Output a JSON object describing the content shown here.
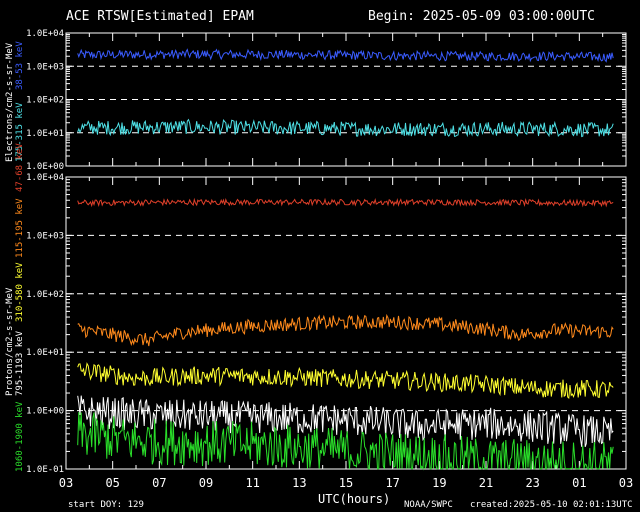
{
  "header": {
    "title": "ACE RTSW[Estimated] EPAM",
    "begin": "Begin: 2025-05-09 03:00:00UTC"
  },
  "footer": {
    "start_doy": "start DOY: 129",
    "xlabel": "UTC(hours)",
    "credit": "NOAA/SWPC",
    "created": "created:2025-05-10 02:01:13UTC"
  },
  "chart_data": [
    {
      "type": "line",
      "panel": "electrons",
      "ylabel": "Electrons/cm2-s-sr-MeV",
      "yscale": "log",
      "ylim": [
        0.1,
        10000
      ],
      "yticks": [
        "1.0E+00",
        "1.0E+01",
        "1.0E+02",
        "1.0E+03",
        "1.0E+04"
      ],
      "xlim": [
        3,
        27
      ],
      "xtick_labels": [
        "03",
        "05",
        "07",
        "09",
        "11",
        "13",
        "15",
        "17",
        "19",
        "21",
        "23",
        "01",
        "03"
      ],
      "dashed_gridlines": [
        1000,
        100,
        10
      ],
      "series": [
        {
          "name": "38-53 keV",
          "color": "#3a5cff",
          "base": 2200,
          "noise": 0.14,
          "anchors": [
            [
              3.5,
              2200
            ],
            [
              8,
              2300
            ],
            [
              12,
              2250
            ],
            [
              16,
              2100
            ],
            [
              20,
              2000
            ],
            [
              24,
              2000
            ],
            [
              26.5,
              1900
            ]
          ]
        },
        {
          "name": "175-315 keV",
          "color": "#4ee0e6",
          "base": 13,
          "noise": 0.22,
          "anchors": [
            [
              3.5,
              14
            ],
            [
              8,
              15
            ],
            [
              12,
              14
            ],
            [
              16,
              13
            ],
            [
              20,
              13
            ],
            [
              24,
              13
            ],
            [
              26.5,
              12
            ]
          ]
        }
      ]
    },
    {
      "type": "line",
      "panel": "protons",
      "ylabel": "Protons/cm2-s-sr-MeV",
      "yscale": "log",
      "ylim": [
        0.1,
        10000
      ],
      "yticks": [
        "1.0E-01",
        "1.0E+00",
        "1.0E+01",
        "1.0E+02",
        "1.0E+03",
        "1.0E+04"
      ],
      "xlim": [
        3,
        27
      ],
      "xtick_labels": [
        "03",
        "05",
        "07",
        "09",
        "11",
        "13",
        "15",
        "17",
        "19",
        "21",
        "23",
        "01",
        "03"
      ],
      "dashed_gridlines": [
        1000,
        100,
        10,
        1
      ],
      "series": [
        {
          "name": "47-68 keV",
          "color": "#e0402a",
          "noise": 0.05,
          "anchors": [
            [
              3.5,
              3600
            ],
            [
              8,
              3700
            ],
            [
              12,
              3700
            ],
            [
              16,
              3700
            ],
            [
              20,
              3700
            ],
            [
              24,
              3600
            ],
            [
              26.5,
              3600
            ]
          ]
        },
        {
          "name": "115-195 keV",
          "color": "#ff8a1c",
          "noise": 0.12,
          "anchors": [
            [
              3.5,
              25
            ],
            [
              5,
              20
            ],
            [
              6.5,
              16
            ],
            [
              8,
              22
            ],
            [
              11,
              28
            ],
            [
              14,
              32
            ],
            [
              17,
              33
            ],
            [
              19,
              30
            ],
            [
              21,
              25
            ],
            [
              22.5,
              20
            ],
            [
              24,
              24
            ],
            [
              26.5,
              22
            ]
          ]
        },
        {
          "name": "310-580 keV",
          "color": "#ffff30",
          "noise": 0.16,
          "anchors": [
            [
              3.5,
              5
            ],
            [
              6,
              3.6
            ],
            [
              9,
              4
            ],
            [
              12,
              3.8
            ],
            [
              15,
              3.5
            ],
            [
              18,
              3.2
            ],
            [
              21,
              2.8
            ],
            [
              23,
              2.4
            ],
            [
              26.5,
              2.3
            ]
          ]
        },
        {
          "name": "795-1193 keV",
          "color": "#ffffff",
          "noise": 0.28,
          "anchors": [
            [
              3.5,
              1.0
            ],
            [
              6,
              0.85
            ],
            [
              9,
              0.8
            ],
            [
              12,
              0.75
            ],
            [
              15,
              0.7
            ],
            [
              18,
              0.55
            ],
            [
              21,
              0.6
            ],
            [
              24,
              0.5
            ],
            [
              26.5,
              0.4
            ]
          ]
        },
        {
          "name": "1060-1900 keV",
          "color": "#2adf2a",
          "noise": 0.4,
          "anchors": [
            [
              3.5,
              0.4
            ],
            [
              6,
              0.3
            ],
            [
              9,
              0.28
            ],
            [
              12,
              0.25
            ],
            [
              15,
              0.2
            ],
            [
              18,
              0.17
            ],
            [
              21,
              0.14
            ],
            [
              24,
              0.13
            ],
            [
              26.5,
              0.12
            ]
          ]
        }
      ]
    }
  ]
}
